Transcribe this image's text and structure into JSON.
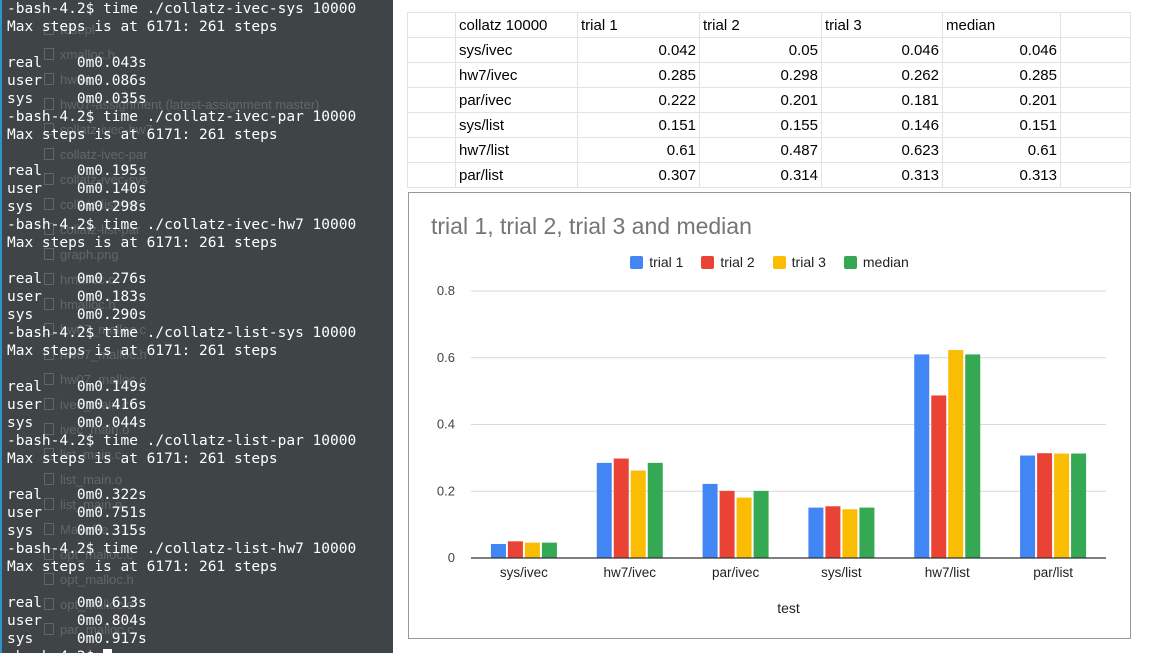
{
  "terminal": {
    "lines": [
      "-bash-4.2$ time ./collatz-ivec-sys 10000",
      "Max steps is at 6171: 261 steps",
      "",
      "real    0m0.043s",
      "user    0m0.086s",
      "sys     0m0.035s",
      "-bash-4.2$ time ./collatz-ivec-par 10000",
      "Max steps is at 6171: 261 steps",
      "",
      "real    0m0.195s",
      "user    0m0.140s",
      "sys     0m0.298s",
      "-bash-4.2$ time ./collatz-ivec-hw7 10000",
      "Max steps is at 6171: 261 steps",
      "",
      "real    0m0.276s",
      "user    0m0.183s",
      "sys     0m0.290s",
      "-bash-4.2$ time ./collatz-list-sys 10000",
      "Max steps is at 6171: 261 steps",
      "",
      "real    0m0.149s",
      "user    0m0.416s",
      "sys     0m0.044s",
      "-bash-4.2$ time ./collatz-list-par 10000",
      "Max steps is at 6171: 261 steps",
      "",
      "real    0m0.322s",
      "user    0m0.751s",
      "sys     0m0.315s",
      "-bash-4.2$ time ./collatz-list-hw7 10000",
      "Max steps is at 6171: 261 steps",
      "",
      "real    0m0.613s",
      "user    0m0.804s",
      "sys     0m0.917s",
      "-bash-4.2$ "
    ],
    "background_files": [
      "test.pl",
      "xmalloc.h",
      "hw04",
      "hw07-assignment (latest-assignment master)",
      "collatz-ivec-hw7",
      "collatz-ivec-par",
      "collatz-ivec-sys",
      "collatz-list-hw7",
      "collatz-list-par",
      "graph.png",
      "hmalloc.c",
      "hmalloc.h",
      "hw07_malloc.c",
      "hw07_malloc.h",
      "hw07_malloc.o",
      "ivec_main.c",
      "ivec_main.o",
      "list_main.c",
      "list_main.o",
      "list_main.o",
      "Makefile",
      "opt_malloc.c",
      "opt_malloc.h",
      "opt_malloc.o",
      "par_malloc.c"
    ]
  },
  "spreadsheet": {
    "header": [
      "collatz 10000",
      "trial 1",
      "trial 2",
      "trial 3",
      "median"
    ],
    "rows": [
      [
        "sys/ivec",
        "0.042",
        "0.05",
        "0.046",
        "0.046"
      ],
      [
        "hw7/ivec",
        "0.285",
        "0.298",
        "0.262",
        "0.285"
      ],
      [
        "par/ivec",
        "0.222",
        "0.201",
        "0.181",
        "0.201"
      ],
      [
        "sys/list",
        "0.151",
        "0.155",
        "0.146",
        "0.151"
      ],
      [
        "hw7/list",
        "0.61",
        "0.487",
        "0.623",
        "0.61"
      ],
      [
        "par/list",
        "0.307",
        "0.314",
        "0.313",
        "0.313"
      ]
    ]
  },
  "chart_data": {
    "type": "bar",
    "title": "trial 1, trial 2, trial 3 and median",
    "xlabel": "test",
    "ylabel": "",
    "categories": [
      "sys/ivec",
      "hw7/ivec",
      "par/ivec",
      "sys/list",
      "hw7/list",
      "par/list"
    ],
    "series": [
      {
        "name": "trial 1",
        "color": "#4285f4",
        "values": [
          0.042,
          0.285,
          0.222,
          0.151,
          0.61,
          0.307
        ]
      },
      {
        "name": "trial 2",
        "color": "#ea4335",
        "values": [
          0.05,
          0.298,
          0.201,
          0.155,
          0.487,
          0.314
        ]
      },
      {
        "name": "trial 3",
        "color": "#fbbc04",
        "values": [
          0.046,
          0.262,
          0.181,
          0.146,
          0.623,
          0.313
        ]
      },
      {
        "name": "median",
        "color": "#34a853",
        "values": [
          0.046,
          0.285,
          0.201,
          0.151,
          0.61,
          0.313
        ]
      }
    ],
    "ylim": [
      0,
      0.8
    ],
    "yticks": [
      "0",
      "0.2",
      "0.4",
      "0.6",
      "0.8"
    ],
    "ytick_values": [
      0,
      0.2,
      0.4,
      0.6,
      0.8
    ],
    "grid": true,
    "legend_position": "top"
  }
}
